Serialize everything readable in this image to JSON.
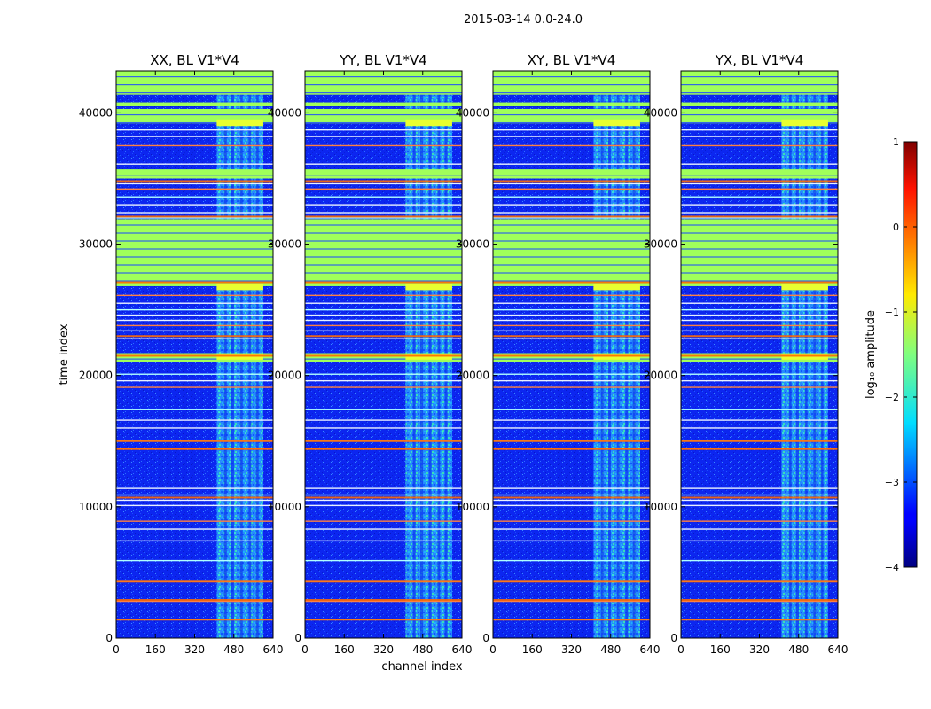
{
  "chart_data": {
    "type": "heatmap",
    "suptitle": "2015-03-14 0.0-24.0",
    "xlabel": "channel index",
    "ylabel": "time index",
    "xlim": [
      0,
      640
    ],
    "ylim": [
      0,
      43200
    ],
    "xticks": [
      0,
      160,
      320,
      480,
      640
    ],
    "yticks": [
      0,
      10000,
      20000,
      30000,
      40000
    ],
    "xtick_labels": [
      "0",
      "160",
      "320",
      "480",
      "640"
    ],
    "ytick_labels": [
      "0",
      "10000",
      "20000",
      "30000",
      "40000"
    ],
    "panels": [
      {
        "title": "XX, BL V1*V4",
        "active_band": true
      },
      {
        "title": "YY, BL V1*V4",
        "active_band": true
      },
      {
        "title": "XY, BL V1*V4",
        "active_band": true
      },
      {
        "title": "YX, BL V1*V4",
        "active_band": true
      }
    ],
    "active_channel_range": [
      410,
      600
    ],
    "full_flag_rows": [
      [
        41400,
        43200
      ],
      [
        39200,
        40300
      ],
      [
        26800,
        31900
      ],
      [
        21000,
        21700
      ],
      [
        40500,
        40800
      ],
      [
        40000,
        40200
      ],
      [
        35000,
        35700
      ]
    ],
    "partial_flag_rows": [
      [
        39000,
        39500
      ],
      [
        26500,
        27000
      ],
      [
        21200,
        21600
      ]
    ],
    "thin_lines": [
      1400,
      2800,
      4300,
      5900,
      7400,
      8300,
      8900,
      10100,
      10500,
      10900,
      11400,
      14400,
      15000,
      16000,
      16600,
      17400,
      19100,
      19600,
      20100,
      22800,
      23400,
      23800,
      24200,
      24600,
      25000,
      25500,
      26100,
      32000,
      32400,
      33000,
      33600,
      34200,
      34600,
      35200,
      35600,
      36100,
      37500,
      38200,
      38700
    ],
    "colorbar": {
      "label": "log₁₀ amplitude",
      "range": [
        -4,
        1
      ],
      "ticks": [
        1,
        0,
        -1,
        -2,
        -3,
        -4
      ],
      "tick_labels": [
        "1",
        "0",
        "−1",
        "−2",
        "−3",
        "−4"
      ],
      "colormap": "jet"
    }
  }
}
